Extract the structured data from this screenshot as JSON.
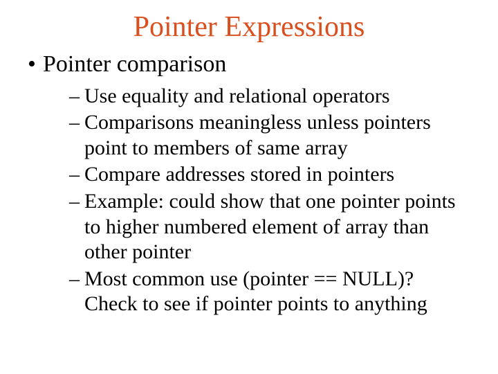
{
  "colors": {
    "title": "#d94f1e",
    "body": "#000000",
    "background": "#ffffff"
  },
  "typography": {
    "family": "Times New Roman",
    "title_fontsize_pt": 32,
    "level1_fontsize_pt": 26,
    "level2_fontsize_pt": 23
  },
  "title": "Pointer Expressions",
  "level1": {
    "bullet": "•",
    "text": "Pointer comparison"
  },
  "level2": {
    "dash": "–",
    "items": [
      "Use equality and relational operators",
      "Comparisons meaningless unless pointers point to members of same array",
      "Compare addresses stored in pointers",
      "Example: could show that one pointer points to higher numbered element of array than other pointer",
      "Most common use (pointer == NULL)? Check to see if pointer points to anything"
    ]
  }
}
